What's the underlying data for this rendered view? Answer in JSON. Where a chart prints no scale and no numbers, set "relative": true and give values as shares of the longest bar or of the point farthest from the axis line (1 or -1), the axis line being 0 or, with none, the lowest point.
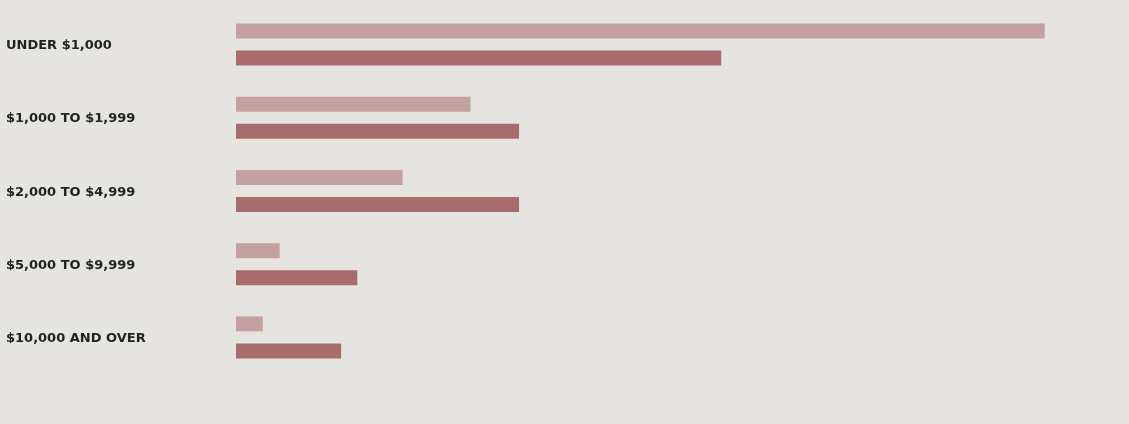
{
  "chart_data": {
    "type": "bar",
    "orientation": "horizontal",
    "relative": true,
    "categories": [
      "UNDER $1,000",
      "$1,000 TO $1,999",
      "$2,000 TO $4,999",
      "$5,000 TO $9,999",
      "$10,000 AND OVER"
    ],
    "series": [
      {
        "color": "#c4a0a0",
        "values": [
          1,
          0.29,
          0.206,
          0.054,
          0.033
        ]
      },
      {
        "color": "#a86c6c",
        "values": [
          0.6,
          0.35,
          0.35,
          0.15,
          0.13
        ]
      }
    ]
  }
}
